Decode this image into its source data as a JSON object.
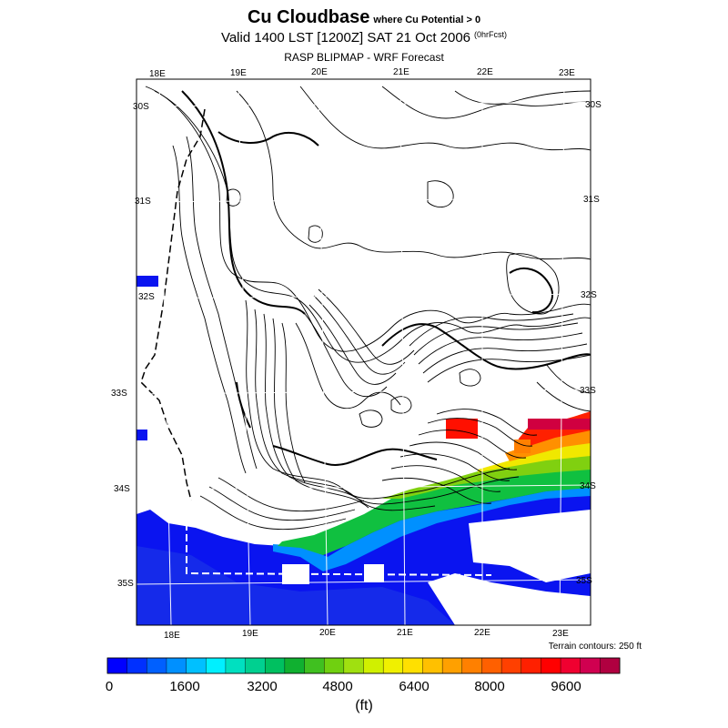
{
  "title": {
    "main": "Cu Cloudbase",
    "qualifier": "where Cu Potential > 0",
    "valid": "Valid 1400 LST [1200Z] SAT 21 Oct 2006",
    "forecast_tag": "(0hrFcst)",
    "model": "RASP BLIPMAP - WRF Forecast"
  },
  "map": {
    "top_lon_labels": [
      "18E",
      "19E",
      "20E",
      "21E",
      "22E",
      "23E"
    ],
    "bottom_lon_labels": [
      "18E",
      "19E",
      "20E",
      "21E",
      "22E",
      "23E"
    ],
    "left_lat_labels": [
      "30S",
      "31S",
      "32S",
      "33S",
      "34S",
      "35S"
    ],
    "right_lat_labels": [
      "30S",
      "31S",
      "32S",
      "33S",
      "34S",
      "35S"
    ],
    "terrain_note": "Terrain contours: 250 ft"
  },
  "colorbar": {
    "tick_labels": [
      "0",
      "1600",
      "3200",
      "4800",
      "6400",
      "8000",
      "9600"
    ],
    "units": "(ft)",
    "colors": [
      "#0000ff",
      "#0030ff",
      "#0060ff",
      "#0090ff",
      "#00c0ff",
      "#00f0ff",
      "#00e0c0",
      "#00d090",
      "#00c060",
      "#10b030",
      "#40c020",
      "#70d010",
      "#a0e010",
      "#d0f000",
      "#f0f000",
      "#ffe000",
      "#ffc000",
      "#ffa000",
      "#ff8000",
      "#ff6000",
      "#ff4000",
      "#ff2000",
      "#ff0000",
      "#f00030",
      "#d00050",
      "#b00040"
    ]
  }
}
